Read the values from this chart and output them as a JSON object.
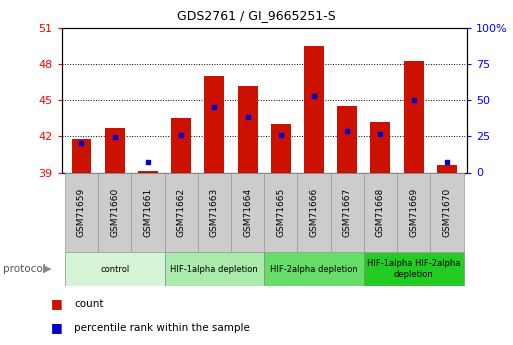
{
  "title": "GDS2761 / GI_9665251-S",
  "samples": [
    "GSM71659",
    "GSM71660",
    "GSM71661",
    "GSM71662",
    "GSM71663",
    "GSM71664",
    "GSM71665",
    "GSM71666",
    "GSM71667",
    "GSM71668",
    "GSM71669",
    "GSM71670"
  ],
  "bar_tops": [
    41.8,
    42.7,
    39.1,
    43.5,
    47.0,
    46.2,
    43.0,
    49.5,
    44.5,
    43.2,
    48.2,
    39.6
  ],
  "bar_bottom": 39.0,
  "blue_y": [
    41.45,
    41.9,
    39.9,
    42.1,
    44.4,
    43.6,
    42.1,
    45.3,
    42.4,
    42.15,
    45.0,
    39.85
  ],
  "groups": [
    {
      "label": "control",
      "samples": [
        0,
        1,
        2
      ],
      "color": "#d6f5d6"
    },
    {
      "label": "HIF-1alpha depletion",
      "samples": [
        3,
        4,
        5
      ],
      "color": "#aaeaaa"
    },
    {
      "label": "HIF-2alpha depletion",
      "samples": [
        6,
        7,
        8
      ],
      "color": "#66dd66"
    },
    {
      "label": "HIF-1alpha HIF-2alpha\ndepletion",
      "samples": [
        9,
        10,
        11
      ],
      "color": "#22cc22"
    }
  ],
  "ylim_left": [
    39,
    51
  ],
  "ylim_right": [
    0,
    100
  ],
  "yticks_left": [
    39,
    42,
    45,
    48,
    51
  ],
  "yticks_right": [
    0,
    25,
    50,
    75,
    100
  ],
  "bar_color": "#cc1100",
  "blue_color": "#0000cc",
  "bar_width": 0.6,
  "xtick_bg": "#cccccc",
  "grid_yticks": [
    42,
    45,
    48
  ]
}
